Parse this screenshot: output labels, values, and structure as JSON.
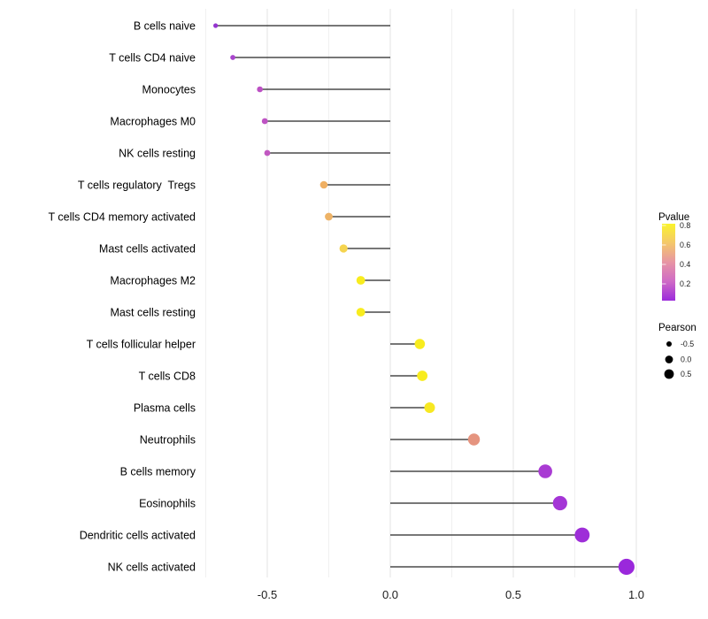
{
  "page": {
    "background": "#ffffff"
  },
  "chart_data": {
    "type": "scatter",
    "style": "horizontal-lollipop",
    "title": "",
    "xlabel": "",
    "ylabel": "",
    "x_ticks": [
      "-0.5",
      "0.0",
      "0.5",
      "1.0"
    ],
    "x_tick_values": [
      -0.5,
      0.0,
      0.5,
      1.0
    ],
    "xlim": [
      -0.77,
      1.07
    ],
    "baseline_x": 0,
    "grid": {
      "major_x": [
        -0.5,
        0.0,
        0.5,
        1.0
      ],
      "minor_x": [
        -0.75,
        -0.25,
        0.25,
        0.75
      ],
      "major_color": "#e3e3e3",
      "minor_color": "#f0f0f0",
      "horizontal": false
    },
    "stem_color": "#262626",
    "points": [
      {
        "label": "B cells naive",
        "pearson": -0.71,
        "color": "#9434CF"
      },
      {
        "label": "T cells CD4 naive",
        "pearson": -0.64,
        "color": "#A845CC"
      },
      {
        "label": "Monocytes",
        "pearson": -0.53,
        "color": "#BC50C4"
      },
      {
        "label": "Macrophages M0",
        "pearson": -0.51,
        "color": "#BE53C3"
      },
      {
        "label": "NK cells resting",
        "pearson": -0.5,
        "color": "#C158C1"
      },
      {
        "label": "T cells regulatory  Tregs",
        "pearson": -0.27,
        "color": "#EFAF62"
      },
      {
        "label": "T cells CD4 memory activated",
        "pearson": -0.25,
        "color": "#EEB366"
      },
      {
        "label": "Mast cells activated",
        "pearson": -0.19,
        "color": "#F5D44F"
      },
      {
        "label": "Macrophages M2",
        "pearson": -0.12,
        "color": "#F8EC1E"
      },
      {
        "label": "Mast cells resting",
        "pearson": -0.12,
        "color": "#F8EC1E"
      },
      {
        "label": "T cells follicular helper",
        "pearson": 0.12,
        "color": "#F8EC1E"
      },
      {
        "label": "T cells CD8",
        "pearson": 0.13,
        "color": "#F8EC1E"
      },
      {
        "label": "Plasma cells",
        "pearson": 0.16,
        "color": "#F7E822"
      },
      {
        "label": "Neutrophils",
        "pearson": 0.34,
        "color": "#E5947F"
      },
      {
        "label": "B cells memory",
        "pearson": 0.63,
        "color": "#A93BD3"
      },
      {
        "label": "Eosinophils",
        "pearson": 0.69,
        "color": "#A435D6"
      },
      {
        "label": "Dendritic cells activated",
        "pearson": 0.78,
        "color": "#9E2ED8"
      },
      {
        "label": "NK cells activated",
        "pearson": 0.96,
        "color": "#9A28DB"
      }
    ],
    "legend": {
      "position": "right",
      "pvalue": {
        "title": "Pvalue",
        "ticks": [
          "0.8",
          "0.6",
          "0.4",
          "0.2"
        ],
        "gradient_top_to_bottom": [
          "#FAF32B",
          "#F4C76B",
          "#E795A4",
          "#CF6AC6",
          "#9C2BDB"
        ],
        "tick_mark_color": "#ffffff"
      },
      "pearson": {
        "title": "Pearson",
        "key_color": "#000000",
        "sizes": [
          {
            "label": "-0.5",
            "value": -0.5
          },
          {
            "label": "0.0",
            "value": 0.0
          },
          {
            "label": "0.5",
            "value": 0.5
          }
        ]
      }
    }
  }
}
